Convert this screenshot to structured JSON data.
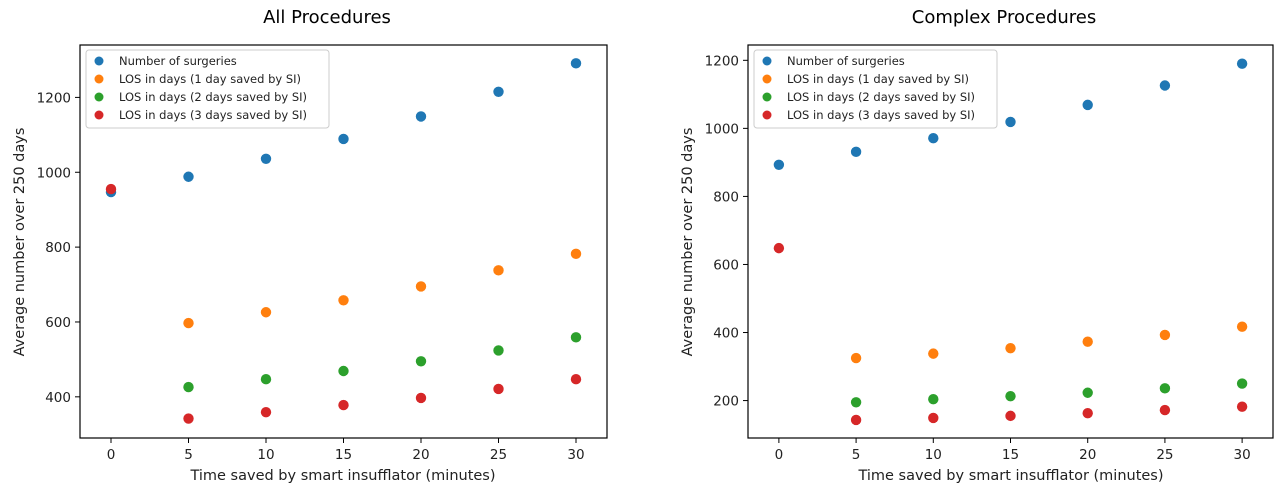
{
  "colors": {
    "series": [
      "#1f77b4",
      "#ff7f0e",
      "#2ca02c",
      "#d62728"
    ]
  },
  "chart_data": [
    {
      "type": "scatter",
      "title": "All Procedures",
      "xlabel": "Time saved by smart insufflator (minutes)",
      "ylabel": "Average number over 250 days",
      "xlim": [
        -2,
        32
      ],
      "ylim": [
        290,
        1340
      ],
      "xticks": [
        0,
        5,
        10,
        15,
        20,
        25,
        30
      ],
      "yticks": [
        400,
        600,
        800,
        1000,
        1200
      ],
      "grid": false,
      "legend_position": "top-left",
      "series": [
        {
          "name": "Number of surgeries",
          "x": [
            0,
            5,
            10,
            15,
            20,
            25,
            30
          ],
          "y": [
            947,
            988,
            1036,
            1089,
            1149,
            1215,
            1291
          ]
        },
        {
          "name": "LOS in days (1 day saved by SI)",
          "x": [
            5,
            10,
            15,
            20,
            25,
            30
          ],
          "y": [
            597,
            626,
            658,
            695,
            738,
            782
          ]
        },
        {
          "name": "LOS in days (2 days saved by SI)",
          "x": [
            5,
            10,
            15,
            20,
            25,
            30
          ],
          "y": [
            426,
            447,
            469,
            495,
            524,
            559
          ]
        },
        {
          "name": "LOS in days (3 days saved by SI)",
          "x": [
            0,
            5,
            10,
            15,
            20,
            25,
            30
          ],
          "y": [
            955,
            342,
            359,
            378,
            397,
            421,
            447
          ]
        }
      ]
    },
    {
      "type": "scatter",
      "title": "Complex Procedures",
      "xlabel": "Time saved by smart insufflator (minutes)",
      "ylabel": "Average number over 250 days",
      "xlim": [
        -2,
        32
      ],
      "ylim": [
        90,
        1245
      ],
      "xticks": [
        0,
        5,
        10,
        15,
        20,
        25,
        30
      ],
      "yticks": [
        200,
        400,
        600,
        800,
        1000,
        1200
      ],
      "grid": false,
      "legend_position": "top-left",
      "series": [
        {
          "name": "Number of surgeries",
          "x": [
            0,
            5,
            10,
            15,
            20,
            25,
            30
          ],
          "y": [
            893,
            931,
            971,
            1019,
            1069,
            1126,
            1190
          ]
        },
        {
          "name": "LOS in days (1 day saved by SI)",
          "x": [
            5,
            10,
            15,
            20,
            25,
            30
          ],
          "y": [
            325,
            338,
            354,
            373,
            393,
            417
          ]
        },
        {
          "name": "LOS in days (2 days saved by SI)",
          "x": [
            5,
            10,
            15,
            20,
            25,
            30
          ],
          "y": [
            195,
            204,
            213,
            223,
            236,
            250
          ]
        },
        {
          "name": "LOS in days (3 days saved by SI)",
          "x": [
            0,
            5,
            10,
            15,
            20,
            25,
            30
          ],
          "y": [
            648,
            143,
            149,
            155,
            163,
            172,
            182
          ]
        }
      ]
    }
  ]
}
